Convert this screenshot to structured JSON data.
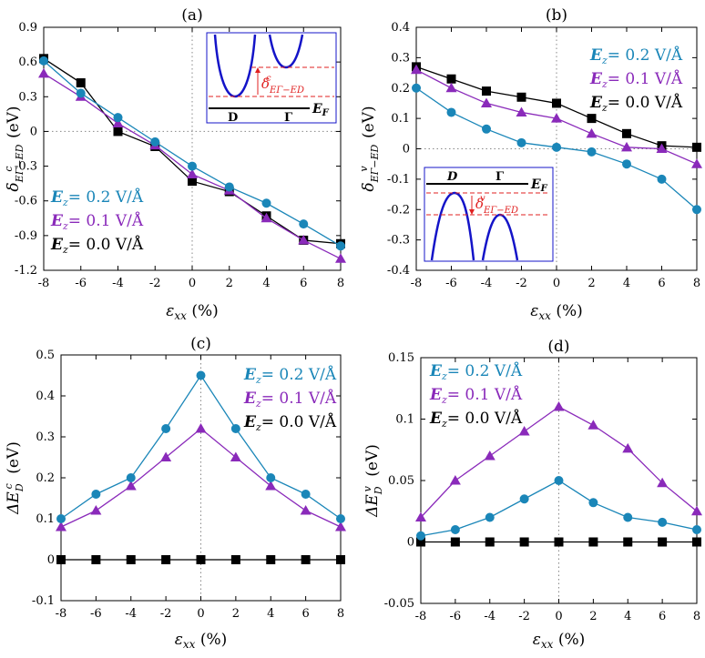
{
  "colors": {
    "s02": "#1a86b8",
    "s01": "#8a2aba",
    "s00": "#000000",
    "inset_curve": "#1414c8",
    "inset_ref": "#e02020"
  },
  "chart_data": [
    {
      "id": "a",
      "type": "line",
      "title": "(a)",
      "xlabel": "εxx (%)",
      "ylabel": "δcEΓ−ED (eV)",
      "xlim": [
        -8,
        8
      ],
      "ylim": [
        -1.2,
        0.9
      ],
      "x": [
        -8,
        -6,
        -4,
        -2,
        0,
        2,
        4,
        6,
        8
      ],
      "xticks": [
        "-8",
        "-6",
        "-4",
        "-2",
        "0",
        "2",
        "4",
        "6",
        "8"
      ],
      "yticks": [
        "0.9",
        "0.6",
        "0.3",
        "0",
        "-0.3",
        "-0.6",
        "-0.9",
        "-1.2"
      ],
      "series": [
        {
          "name": "Ez= 0.2 V/Å",
          "field": "0.2",
          "marker": "circle",
          "values": [
            0.61,
            0.33,
            0.12,
            -0.09,
            -0.3,
            -0.48,
            -0.62,
            -0.8,
            -0.99
          ]
        },
        {
          "name": "Ez= 0.1 V/Å",
          "field": "0.1",
          "marker": "triangle",
          "values": [
            0.5,
            0.3,
            0.07,
            -0.12,
            -0.37,
            -0.51,
            -0.75,
            -0.94,
            -1.1
          ]
        },
        {
          "name": "Ez= 0.0 V/Å",
          "field": "0.0",
          "marker": "square",
          "values": [
            0.63,
            0.42,
            0.0,
            -0.13,
            -0.43,
            -0.52,
            -0.73,
            -0.94,
            -0.97
          ]
        }
      ],
      "legend_position": "bottom-left",
      "inset": {
        "label_left": "D",
        "label_right": "Γ",
        "level_label": "EF",
        "delta_label": "δcEΓ−ED"
      }
    },
    {
      "id": "b",
      "type": "line",
      "title": "(b)",
      "xlabel": "εxx (%)",
      "ylabel": "δvEΓ−ED (eV)",
      "xlim": [
        -8,
        8
      ],
      "ylim": [
        -0.4,
        0.4
      ],
      "x": [
        -8,
        -6,
        -4,
        -2,
        0,
        2,
        4,
        6,
        8
      ],
      "xticks": [
        "-8",
        "-6",
        "-4",
        "-2",
        "0",
        "2",
        "4",
        "6",
        "8"
      ],
      "yticks": [
        "0.4",
        "0.3",
        "0.2",
        "0.1",
        "0",
        "-0.1",
        "-0.2",
        "-0.3",
        "-0.4"
      ],
      "series": [
        {
          "name": "Ez= 0.2 V/Å",
          "field": "0.2",
          "marker": "circle",
          "values": [
            0.2,
            0.12,
            0.065,
            0.02,
            0.005,
            -0.01,
            -0.05,
            -0.1,
            -0.2
          ]
        },
        {
          "name": "Ez= 0.1 V/Å",
          "field": "0.1",
          "marker": "triangle",
          "values": [
            0.26,
            0.2,
            0.15,
            0.12,
            0.1,
            0.05,
            0.005,
            0.0,
            -0.05
          ]
        },
        {
          "name": "Ez= 0.0 V/Å",
          "field": "0.0",
          "marker": "square",
          "values": [
            0.27,
            0.23,
            0.19,
            0.17,
            0.15,
            0.1,
            0.05,
            0.01,
            0.005
          ]
        }
      ],
      "legend_position": "top-right",
      "inset": {
        "label_left": "D",
        "label_right": "Γ",
        "level_label": "EF",
        "delta_label": "δvEΓ−ED"
      }
    },
    {
      "id": "c",
      "type": "line",
      "title": "(c)",
      "xlabel": "εxx (%)",
      "ylabel": "ΔEcD (eV)",
      "xlim": [
        -8,
        8
      ],
      "ylim": [
        -0.1,
        0.5
      ],
      "x": [
        -8,
        -6,
        -4,
        -2,
        0,
        2,
        4,
        6,
        8
      ],
      "xticks": [
        "-8",
        "-6",
        "-4",
        "-2",
        "0",
        "2",
        "4",
        "6",
        "8"
      ],
      "yticks": [
        "0.5",
        "0.4",
        "0.3",
        "0.2",
        "0.1",
        "0",
        "-0.1"
      ],
      "series": [
        {
          "name": "Ez= 0.2 V/Å",
          "field": "0.2",
          "marker": "circle",
          "values": [
            0.1,
            0.16,
            0.2,
            0.32,
            0.45,
            0.32,
            0.2,
            0.16,
            0.1
          ]
        },
        {
          "name": "Ez= 0.1 V/Å",
          "field": "0.1",
          "marker": "triangle",
          "values": [
            0.08,
            0.12,
            0.18,
            0.25,
            0.32,
            0.25,
            0.18,
            0.12,
            0.08
          ]
        },
        {
          "name": "Ez= 0.0 V/Å",
          "field": "0.0",
          "marker": "square",
          "values": [
            0,
            0,
            0,
            0,
            0,
            0,
            0,
            0,
            0
          ]
        }
      ],
      "legend_position": "top-right"
    },
    {
      "id": "d",
      "type": "line",
      "title": "(d)",
      "xlabel": "εxx (%)",
      "ylabel": "ΔEvD (eV)",
      "xlim": [
        -8,
        8
      ],
      "ylim": [
        -0.05,
        0.15
      ],
      "x": [
        -8,
        -6,
        -4,
        -2,
        0,
        2,
        4,
        6,
        8
      ],
      "xticks": [
        "-8",
        "-6",
        "-4",
        "-2",
        "0",
        "2",
        "4",
        "6",
        "8"
      ],
      "yticks": [
        "0.15",
        "0.1",
        "0.05",
        "0",
        "-0.05"
      ],
      "series": [
        {
          "name": "Ez= 0.2 V/Å",
          "field": "0.2",
          "marker": "circle",
          "values": [
            0.005,
            0.01,
            0.02,
            0.035,
            0.05,
            0.032,
            0.02,
            0.016,
            0.01
          ]
        },
        {
          "name": "Ez= 0.1 V/Å",
          "field": "0.1",
          "marker": "triangle",
          "values": [
            0.02,
            0.05,
            0.07,
            0.09,
            0.11,
            0.095,
            0.076,
            0.048,
            0.025
          ]
        },
        {
          "name": "Ez= 0.0 V/Å",
          "field": "0.0",
          "marker": "square",
          "values": [
            0,
            0,
            0,
            0,
            0,
            0,
            0,
            0,
            0
          ]
        }
      ],
      "legend_position": "top-left"
    }
  ]
}
